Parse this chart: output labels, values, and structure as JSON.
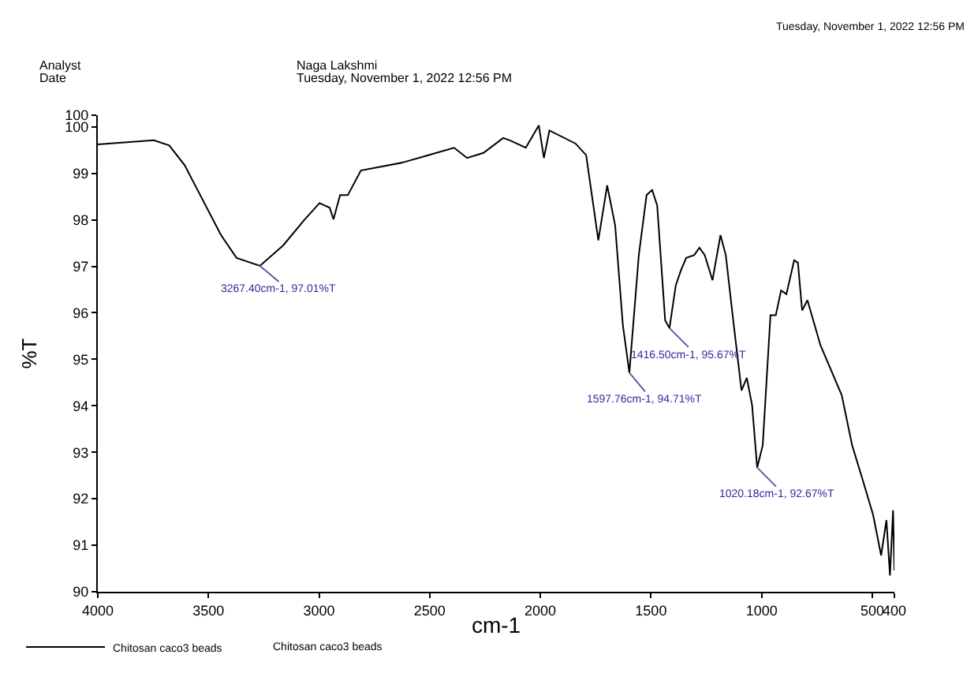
{
  "chart_data": {
    "type": "line",
    "xlabel": "cm-1",
    "ylabel": "%T",
    "x": [
      4000,
      3747,
      3677,
      3607,
      3537,
      3443,
      3373,
      3267.4,
      3162,
      3068,
      2998,
      2952,
      2935,
      2905,
      2870,
      2811,
      2624,
      2507,
      2390,
      2331,
      2257,
      2168,
      2138,
      2066,
      2007,
      1984,
      1959,
      1841,
      1793,
      1738,
      1698,
      1662,
      1627,
      1597.76,
      1555,
      1520,
      1495,
      1472,
      1436,
      1416.5,
      1388,
      1365,
      1341,
      1305,
      1281,
      1257,
      1222,
      1186,
      1162,
      1127,
      1091,
      1067,
      1043,
      1020.18,
      995,
      960,
      936,
      912,
      888,
      853,
      836,
      817,
      793,
      734,
      638,
      591,
      543,
      496,
      460,
      436,
      420,
      406,
      400
    ],
    "series": [
      {
        "name": "Chitosan caco3 beads",
        "color": "#000000",
        "values": [
          99.62,
          99.71,
          99.6,
          99.17,
          98.53,
          97.67,
          97.18,
          97.01,
          97.45,
          97.99,
          98.36,
          98.26,
          98.01,
          98.53,
          98.53,
          99.06,
          99.23,
          99.39,
          99.55,
          99.33,
          99.44,
          99.76,
          99.71,
          99.55,
          100.03,
          99.33,
          99.92,
          99.64,
          99.39,
          97.56,
          98.74,
          97.88,
          95.73,
          94.71,
          97.24,
          98.53,
          98.64,
          98.31,
          95.84,
          95.67,
          96.59,
          96.91,
          97.18,
          97.24,
          97.4,
          97.24,
          96.7,
          97.67,
          97.24,
          95.78,
          94.33,
          94.6,
          94.01,
          92.67,
          93.15,
          95.95,
          95.95,
          96.48,
          96.4,
          97.13,
          97.08,
          96.05,
          96.27,
          95.3,
          94.23,
          93.15,
          92.4,
          91.65,
          90.78,
          91.54,
          90.35,
          91.75,
          90.46
        ]
      }
    ],
    "xlim": [
      4000,
      400
    ],
    "xticks": [
      4000,
      3500,
      3000,
      2500,
      2000,
      1500,
      1000,
      500,
      400
    ],
    "ylim": [
      90,
      100.25
    ],
    "yticks": [
      90,
      91,
      92,
      93,
      94,
      95,
      96,
      97,
      98,
      99,
      100,
      {
        "value": 100.25,
        "label": "100"
      }
    ],
    "legend": "bottom left",
    "marker": "none",
    "line_style": "solid",
    "annotations": [
      {
        "text": "3267.40cm-1, 97.01%T",
        "x": 3267.4,
        "y": 97.01
      },
      {
        "text": "1416.50cm-1, 95.67%T",
        "x": 1416.5,
        "y": 95.67
      },
      {
        "text": "1597.76cm-1, 94.71%T",
        "x": 1597.76,
        "y": 94.71
      },
      {
        "text": "1020.18cm-1, 92.67%T",
        "x": 1020.18,
        "y": 92.67
      },
      "Analyst",
      "Naga Lakshmi",
      "Date",
      "Tuesday, November 1, 2022 12:56 PM",
      "Tuesday, November 1, 2022 12:56 PM",
      "Chitosan caco3 beads"
    ]
  }
}
